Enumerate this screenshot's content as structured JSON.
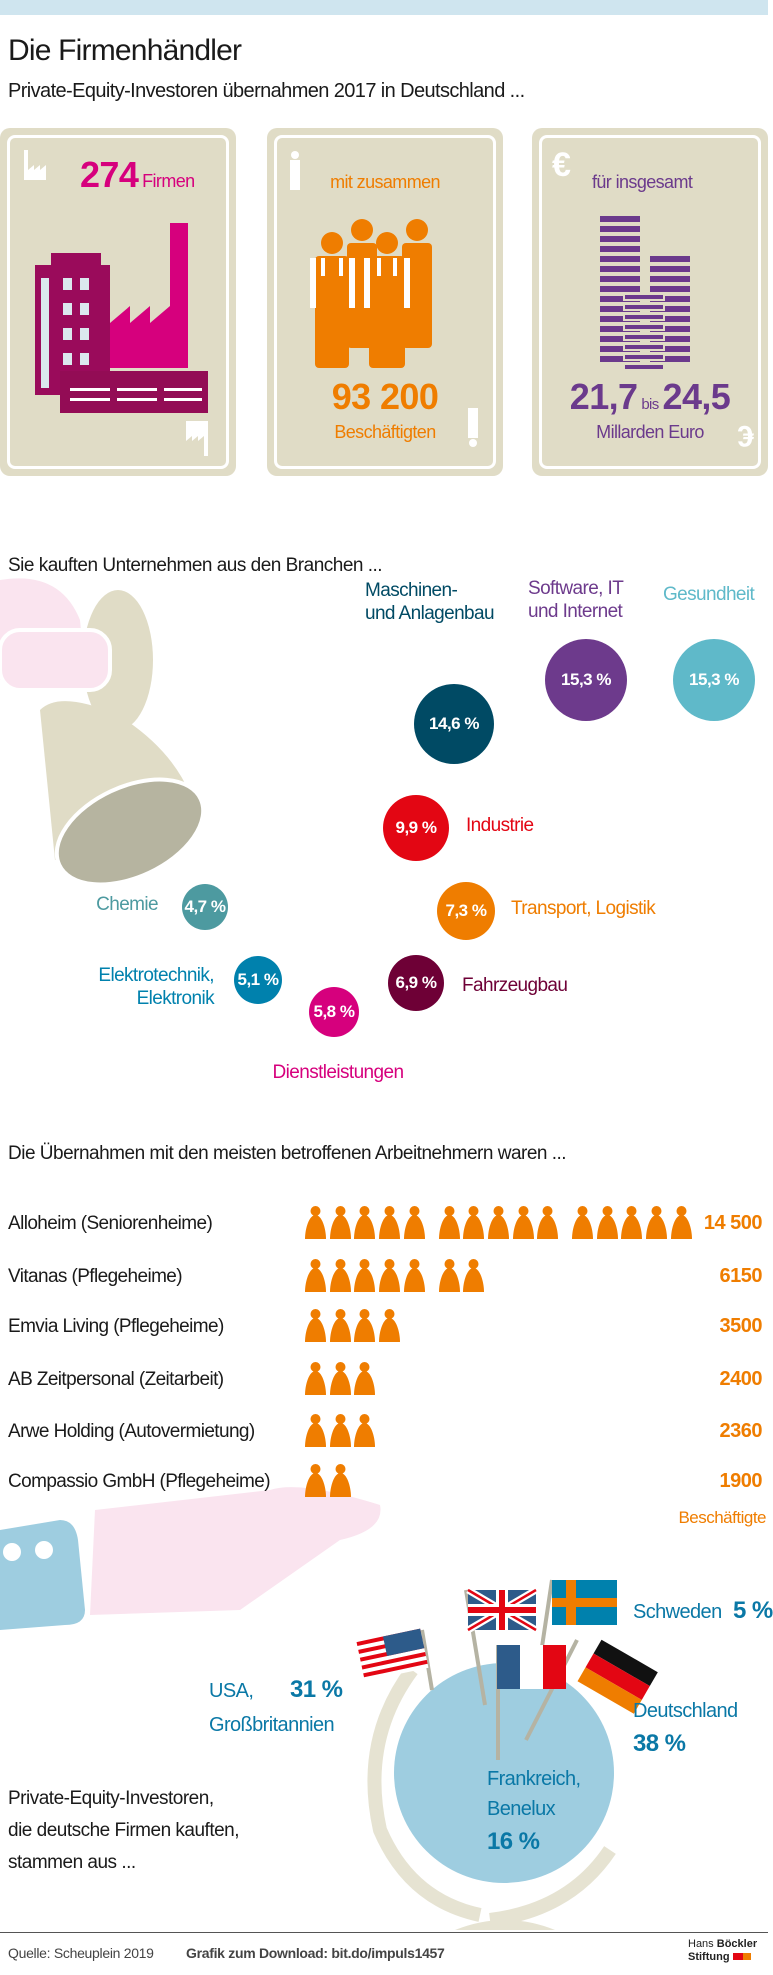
{
  "header": {
    "title": "Die Firmenhändler",
    "subtitle": "Private-Equity-Investoren übernahmen 2017 in Deutschland ..."
  },
  "cards": [
    {
      "value": "274",
      "label": "Firmen",
      "color": "#d6007d",
      "icon": "factory-icon"
    },
    {
      "intro": "mit zusammen",
      "value": "93 200",
      "label": "Beschäftigten",
      "color": "#ef7d00",
      "icon": "workers-icon"
    },
    {
      "intro": "für insgesamt",
      "value_from": "21,7",
      "connector": "bis",
      "value_to": "24,5",
      "label": "Millarden Euro",
      "color": "#6b3a8c",
      "icon": "coin-stack-icon"
    }
  ],
  "branches": {
    "heading": "Sie kauften Unternehmen aus den Branchen ...",
    "items": [
      {
        "label": "Maschinen-\nund Anlagenbau",
        "value": "14,6 %",
        "color": "#004a64"
      },
      {
        "label": "Software, IT\nund Internet",
        "value": "15,3 %",
        "color": "#6d3a8c"
      },
      {
        "label": "Gesundheit",
        "value": "15,3 %",
        "color": "#5fb9c9"
      },
      {
        "label": "Industrie",
        "value": "9,9 %",
        "color": "#e30613"
      },
      {
        "label": "Transport, Logistik",
        "value": "7,3 %",
        "color": "#ef7d00"
      },
      {
        "label": "Fahrzeugbau",
        "value": "6,9 %",
        "color": "#6e0036"
      },
      {
        "label": "Dienstleistungen",
        "value": "5,8 %",
        "color": "#d6007d"
      },
      {
        "label": "Elektrotechnik,\nElektronik",
        "value": "5,1 %",
        "color": "#0081ad"
      },
      {
        "label": "Chemie",
        "value": "4,7 %",
        "color": "#4d9aa0"
      }
    ]
  },
  "takeovers": {
    "heading": "Die Übernahmen mit den meisten betroffenen Arbeitnehmern waren ...",
    "unit": "Beschäftigte",
    "icon_color": "#ef7d00",
    "employees_per_icon": 1000,
    "rows": [
      {
        "company": "Alloheim (Seniorenheime)",
        "employees": 14500,
        "display": "14 500"
      },
      {
        "company": "Vitanas (Pflegeheime)",
        "employees": 6150,
        "display": "6150"
      },
      {
        "company": "Emvia Living (Pflegeheime)",
        "employees": 3500,
        "display": "3500"
      },
      {
        "company": "AB Zeitpersonal (Zeitarbeit)",
        "employees": 2400,
        "display": "2400"
      },
      {
        "company": "Arwe Holding (Autovermietung)",
        "employees": 2360,
        "display": "2360"
      },
      {
        "company": "Compassio GmbH (Pflegeheime)",
        "employees": 1900,
        "display": "1900"
      }
    ]
  },
  "origins": {
    "intro": [
      "Private-Equity-Investoren,",
      "die deutsche Firmen kauften,",
      "stammen aus ..."
    ],
    "items": [
      {
        "label": "USA,",
        "label2": "Großbritannien",
        "value": "31 %"
      },
      {
        "label": "Schweden",
        "value": "5 %"
      },
      {
        "label": "Deutschland",
        "value": "38 %"
      },
      {
        "label": "Frankreich,",
        "label2": "Benelux",
        "value": "16 %"
      }
    ],
    "text_color": "#0a78a6"
  },
  "footer": {
    "source": "Quelle: Scheuplein 2019",
    "download": "Grafik zum Download: bit.do/impuls1457",
    "logo_line1a": "Hans",
    "logo_line1b": "Böckler",
    "logo_line2": "Stiftung"
  }
}
